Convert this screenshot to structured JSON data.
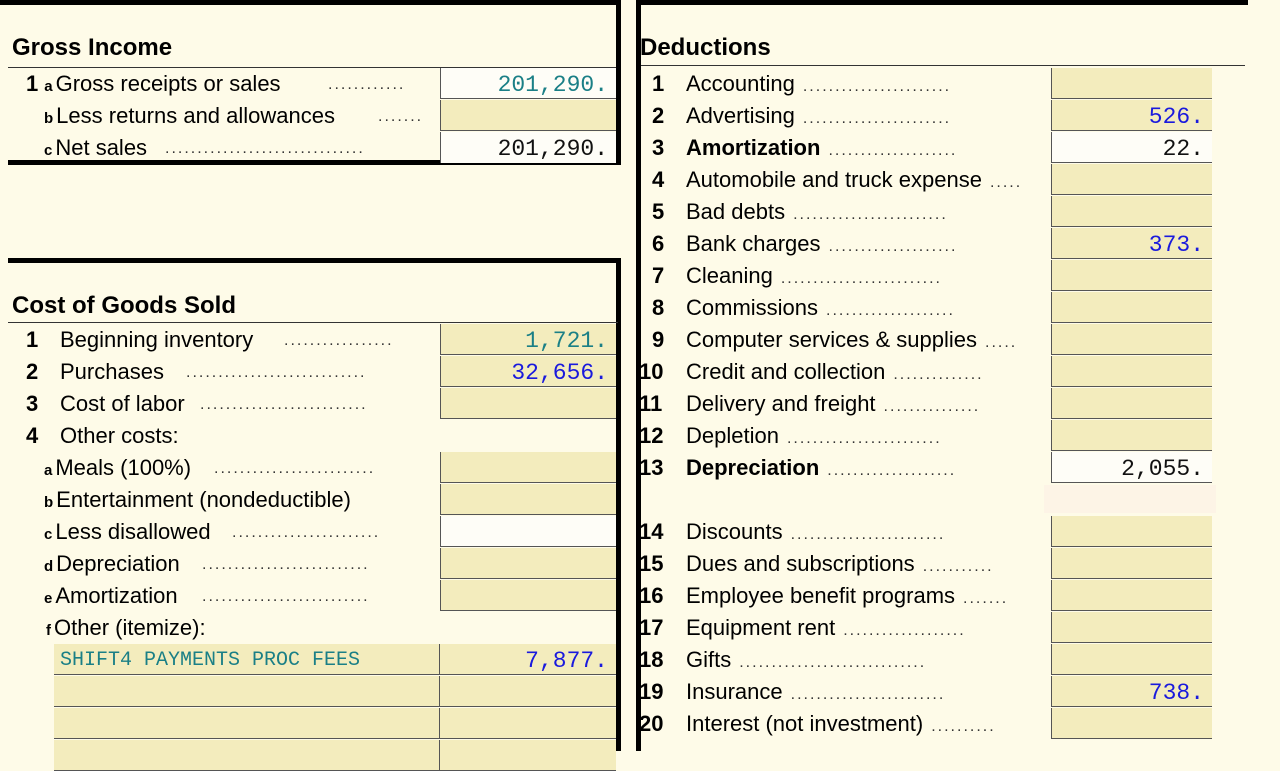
{
  "gross_income": {
    "title": "Gross Income",
    "lines": [
      {
        "num": "1",
        "sub": "a",
        "label": "Gross receipts or sales",
        "value": "201,290."
      },
      {
        "num": "",
        "sub": "b",
        "label": "Less returns and allowances",
        "value": ""
      },
      {
        "num": "",
        "sub": "c",
        "label": "Net sales",
        "value": "201,290."
      }
    ]
  },
  "cogs": {
    "title": "Cost of Goods Sold",
    "lines": [
      {
        "num": "1",
        "label": "Beginning inventory",
        "value": "1,721."
      },
      {
        "num": "2",
        "label": "Purchases",
        "value": "32,656."
      },
      {
        "num": "3",
        "label": "Cost of labor",
        "value": ""
      },
      {
        "num": "4",
        "label": "Other costs:"
      }
    ],
    "other": [
      {
        "sub": "a",
        "label": "Meals (100%)",
        "value": ""
      },
      {
        "sub": "b",
        "label": "Entertainment (nondeductible)",
        "value": ""
      },
      {
        "sub": "c",
        "label": "Less disallowed",
        "value": ""
      },
      {
        "sub": "d",
        "label": "Depreciation",
        "value": ""
      },
      {
        "sub": "e",
        "label": "Amortization",
        "value": ""
      },
      {
        "sub": "f",
        "label": "Other (itemize):"
      }
    ],
    "itemized": [
      {
        "desc": "SHIFT4 PAYMENTS PROC FEES",
        "value": "7,877."
      },
      {
        "desc": "",
        "value": ""
      },
      {
        "desc": "",
        "value": ""
      }
    ]
  },
  "deductions": {
    "title": "Deductions",
    "lines": [
      {
        "num": "1",
        "label": "Accounting",
        "value": ""
      },
      {
        "num": "2",
        "label": "Advertising",
        "value": "526."
      },
      {
        "num": "3",
        "label": "Amortization",
        "value": "22.",
        "bold": true
      },
      {
        "num": "4",
        "label": "Automobile and truck expense",
        "value": ""
      },
      {
        "num": "5",
        "label": "Bad debts",
        "value": ""
      },
      {
        "num": "6",
        "label": "Bank charges",
        "value": "373."
      },
      {
        "num": "7",
        "label": "Cleaning",
        "value": ""
      },
      {
        "num": "8",
        "label": "Commissions",
        "value": ""
      },
      {
        "num": "9",
        "label": "Computer services & supplies",
        "value": ""
      },
      {
        "num": "10",
        "label": "Credit and collection",
        "value": ""
      },
      {
        "num": "11",
        "label": "Delivery and freight",
        "value": ""
      },
      {
        "num": "12",
        "label": "Depletion",
        "value": ""
      },
      {
        "num": "13",
        "label": "Depreciation",
        "value": "2,055.",
        "bold": true
      },
      {
        "num": "14",
        "label": "Discounts",
        "value": ""
      },
      {
        "num": "15",
        "label": "Dues and subscriptions",
        "value": ""
      },
      {
        "num": "16",
        "label": "Employee benefit programs",
        "value": ""
      },
      {
        "num": "17",
        "label": "Equipment rent",
        "value": ""
      },
      {
        "num": "18",
        "label": "Gifts",
        "value": ""
      },
      {
        "num": "19",
        "label": "Insurance",
        "value": "738."
      },
      {
        "num": "20",
        "label": "Interest (not investment)",
        "value": ""
      }
    ]
  }
}
